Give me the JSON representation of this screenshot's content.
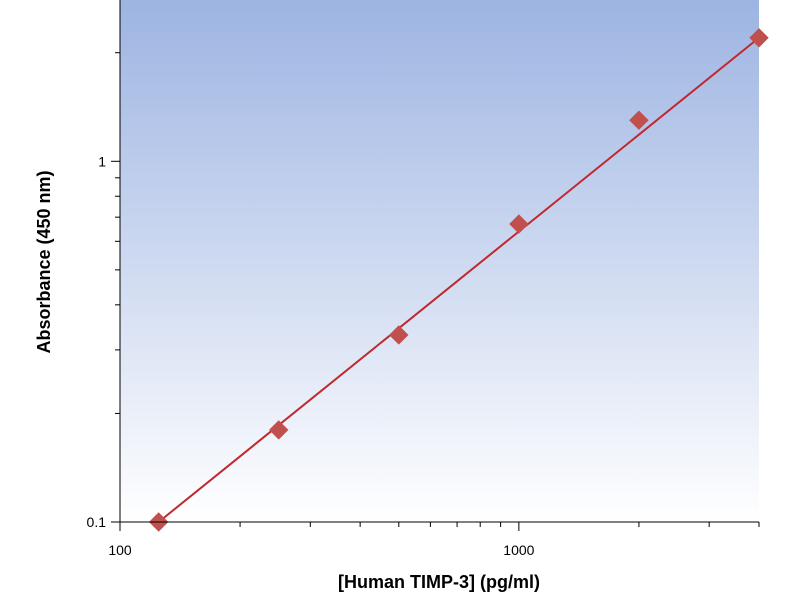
{
  "chart_data": {
    "type": "scatter",
    "title": "",
    "xlabel": "[Human TIMP-3] (pg/ml)",
    "ylabel": "Absorbance (450 nm)",
    "x_scale": "log",
    "y_scale": "log",
    "xlim": [
      100,
      4000
    ],
    "ylim": [
      0.1,
      2.8
    ],
    "x_tick_labels": [
      "100",
      "1000"
    ],
    "y_tick_labels": [
      "0.1",
      "1"
    ],
    "x_major_ticks": [
      100,
      1000
    ],
    "y_major_ticks": [
      0.1,
      1
    ],
    "grid": false,
    "legend": "none",
    "background_gradient": [
      "#9db4e2",
      "#ffffff"
    ],
    "series": [
      {
        "marker": "diamond",
        "color": "#c0504d",
        "x": [
          125,
          250,
          500,
          1000,
          2000,
          4000
        ],
        "y": [
          0.1,
          0.18,
          0.33,
          0.67,
          1.3,
          2.2
        ]
      }
    ],
    "fit_line": {
      "color": "#c0282d",
      "x": [
        125,
        4000
      ],
      "y": [
        0.1,
        2.2
      ]
    }
  }
}
